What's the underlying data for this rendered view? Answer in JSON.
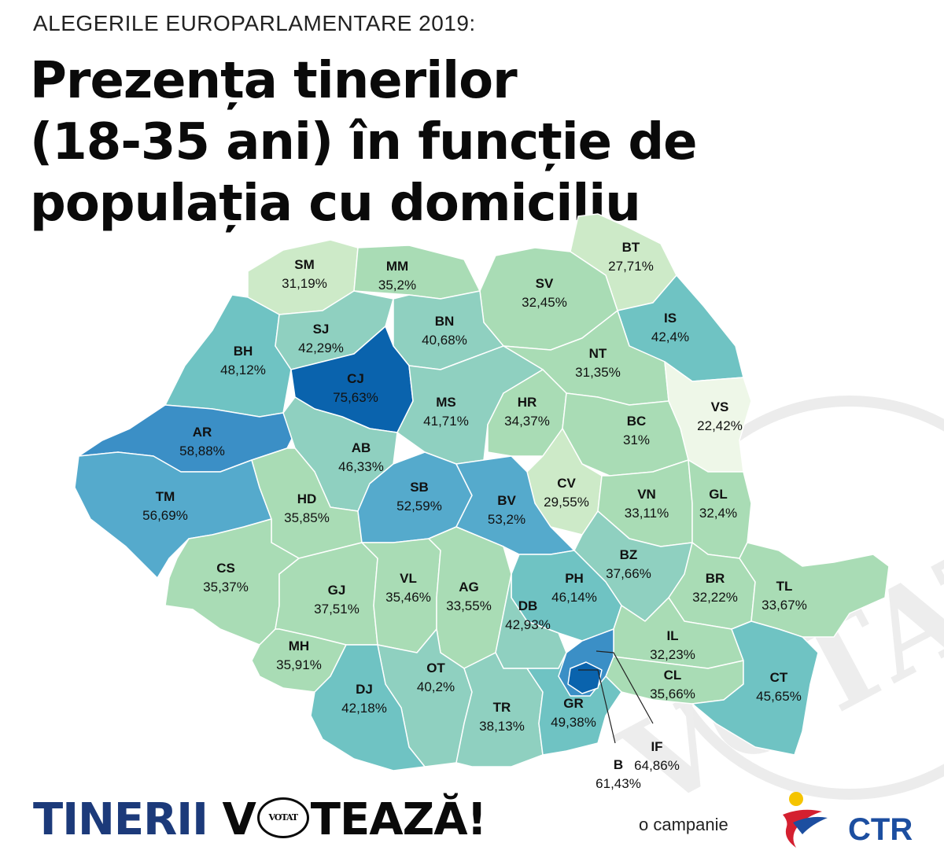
{
  "supertitle": "ALEGERILE EUROPARLAMENTARE 2019:",
  "title": {
    "line1": "Prezența tinerilor",
    "line2": "(18-35 ani) în funcție de",
    "line3": "populația cu domiciliu"
  },
  "colors": {
    "low": "#eef7e8",
    "light": "#cdeac8",
    "mid_green": "#a9dcb5",
    "teal_light": "#8fd0c0",
    "teal": "#6fc3c3",
    "blue_light": "#55aacc",
    "blue": "#3b8fc6",
    "dark_blue": "#0a63ad"
  },
  "counties": [
    {
      "code": "SM",
      "value": "31,19%"
    },
    {
      "code": "MM",
      "value": "35,2%"
    },
    {
      "code": "BT",
      "value": "27,71%"
    },
    {
      "code": "SV",
      "value": "32,45%"
    },
    {
      "code": "IS",
      "value": "42,4%"
    },
    {
      "code": "BH",
      "value": "48,12%"
    },
    {
      "code": "SJ",
      "value": "42,29%"
    },
    {
      "code": "BN",
      "value": "40,68%"
    },
    {
      "code": "CJ",
      "value": "75,63%"
    },
    {
      "code": "NT",
      "value": "31,35%"
    },
    {
      "code": "AR",
      "value": "58,88%"
    },
    {
      "code": "MS",
      "value": "41,71%"
    },
    {
      "code": "HR",
      "value": "34,37%"
    },
    {
      "code": "BC",
      "value": "31%"
    },
    {
      "code": "VS",
      "value": "22,42%"
    },
    {
      "code": "AB",
      "value": "46,33%"
    },
    {
      "code": "CV",
      "value": "29,55%"
    },
    {
      "code": "TM",
      "value": "56,69%"
    },
    {
      "code": "HD",
      "value": "35,85%"
    },
    {
      "code": "SB",
      "value": "52,59%"
    },
    {
      "code": "BV",
      "value": "53,2%"
    },
    {
      "code": "VN",
      "value": "33,11%"
    },
    {
      "code": "GL",
      "value": "32,4%"
    },
    {
      "code": "BZ",
      "value": "37,66%"
    },
    {
      "code": "CS",
      "value": "35,37%"
    },
    {
      "code": "GJ",
      "value": "37,51%"
    },
    {
      "code": "VL",
      "value": "35,46%"
    },
    {
      "code": "AG",
      "value": "33,55%"
    },
    {
      "code": "PH",
      "value": "46,14%"
    },
    {
      "code": "BR",
      "value": "32,22%"
    },
    {
      "code": "TL",
      "value": "33,67%"
    },
    {
      "code": "DB",
      "value": "42,93%"
    },
    {
      "code": "IL",
      "value": "32,23%"
    },
    {
      "code": "MH",
      "value": "35,91%"
    },
    {
      "code": "OT",
      "value": "40,2%"
    },
    {
      "code": "CL",
      "value": "35,66%"
    },
    {
      "code": "CT",
      "value": "45,65%"
    },
    {
      "code": "DJ",
      "value": "42,18%"
    },
    {
      "code": "TR",
      "value": "38,13%"
    },
    {
      "code": "GR",
      "value": "49,38%"
    },
    {
      "code": "IF",
      "value": "64,86%"
    },
    {
      "code": "B",
      "value": "61,43%"
    }
  ],
  "footer": {
    "brand_word1": "TINERII",
    "brand_word2_a": "V",
    "brand_stamp": "VOTAT",
    "brand_word2_b": "TEAZĂ!",
    "campaign": "o campanie",
    "logo_text": "CTR",
    "watermark": "VOTAT"
  }
}
